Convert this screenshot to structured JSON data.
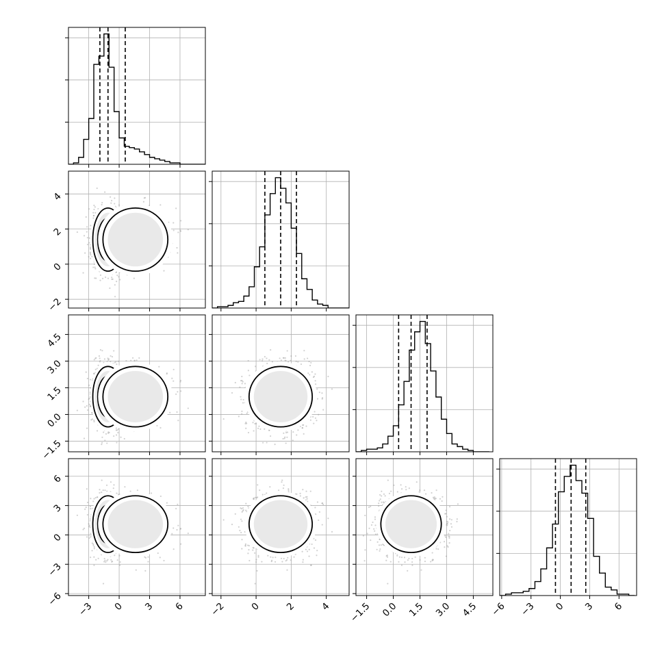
{
  "chart_data": {
    "type": "corner",
    "grid": true,
    "quantiles": [
      0.16,
      0.5,
      0.84
    ],
    "params": [
      {
        "range": [
          -5,
          8.5
        ],
        "ticks": [
          -3,
          0,
          3,
          6
        ],
        "tick_labels": [
          "−3",
          "0",
          "3",
          "6"
        ],
        "quantile_values": [
          -1.9,
          -1.1,
          0.6
        ],
        "hist_bins": [
          -5,
          -4.5,
          -4,
          -3.5,
          -3,
          -2.5,
          -2,
          -1.5,
          -1,
          -0.5,
          0,
          0.5,
          1,
          1.5,
          2,
          2.5,
          3,
          3.5,
          4,
          4.5,
          5,
          5.5,
          6,
          6.5,
          7,
          7.5,
          8,
          8.5
        ],
        "hist_counts": [
          0,
          1,
          5,
          18,
          33,
          72,
          78,
          94,
          70,
          38,
          19,
          13,
          12,
          11,
          9,
          7,
          5,
          4,
          3,
          2,
          1,
          1,
          0,
          0,
          0,
          0,
          0
        ]
      },
      {
        "range": [
          -2.5,
          5.3
        ],
        "ticks": [
          -2,
          0,
          2,
          4
        ],
        "tick_labels": [
          "−2",
          "0",
          "2",
          "4"
        ],
        "quantile_values": [
          0.5,
          1.4,
          2.3
        ],
        "hist_bins": [
          -2.5,
          -2.2,
          -1.9,
          -1.6,
          -1.3,
          -1,
          -0.7,
          -0.4,
          -0.1,
          0.2,
          0.5,
          0.8,
          1.1,
          1.4,
          1.7,
          2,
          2.3,
          2.6,
          2.9,
          3.2,
          3.5,
          3.8,
          4.1,
          4.4,
          4.7,
          5,
          5.3
        ],
        "hist_counts": [
          0,
          1,
          1,
          2,
          4,
          5,
          9,
          16,
          31,
          46,
          70,
          86,
          98,
          90,
          79,
          60,
          41,
          22,
          14,
          6,
          3,
          2,
          0,
          0,
          0,
          0
        ]
      },
      {
        "range": [
          -2.1,
          5.6
        ],
        "ticks": [
          -1.5,
          0,
          1.5,
          3,
          4.5
        ],
        "tick_labels": [
          "−1.5",
          "0.0",
          "1.5",
          "3.0",
          "4.5"
        ],
        "quantile_values": [
          0.3,
          1.0,
          1.9
        ],
        "hist_bins": [
          -2.1,
          -1.8,
          -1.5,
          -1.2,
          -0.9,
          -0.6,
          -0.3,
          0,
          0.3,
          0.6,
          0.9,
          1.2,
          1.5,
          1.8,
          2.1,
          2.4,
          2.7,
          3,
          3.3,
          3.6,
          3.9,
          4.2,
          4.5,
          4.8,
          5.1,
          5.4
        ],
        "hist_counts": [
          0,
          1,
          2,
          2,
          3,
          6,
          12,
          20,
          36,
          54,
          78,
          92,
          100,
          83,
          62,
          42,
          25,
          14,
          6,
          4,
          2,
          1,
          0,
          0,
          0
        ]
      },
      {
        "range": [
          -6.2,
          7.8
        ],
        "ticks": [
          -6,
          -3,
          0,
          3,
          6
        ],
        "tick_labels": [
          "−6",
          "−3",
          "0",
          "3",
          "6"
        ],
        "quantile_values": [
          -0.5,
          1.1,
          2.6
        ],
        "hist_bins": [
          -6.2,
          -5.6,
          -5,
          -4.4,
          -3.8,
          -3.2,
          -2.6,
          -2,
          -1.4,
          -0.8,
          -0.2,
          0.4,
          1,
          1.6,
          2.2,
          2.8,
          3.4,
          4,
          4.6,
          5.2,
          5.8,
          6.4,
          7,
          7.6
        ],
        "hist_counts": [
          0,
          1,
          2,
          2,
          3,
          5,
          10,
          19,
          34,
          51,
          74,
          85,
          93,
          82,
          73,
          55,
          28,
          16,
          6,
          4,
          1,
          1,
          0
        ]
      }
    ]
  }
}
